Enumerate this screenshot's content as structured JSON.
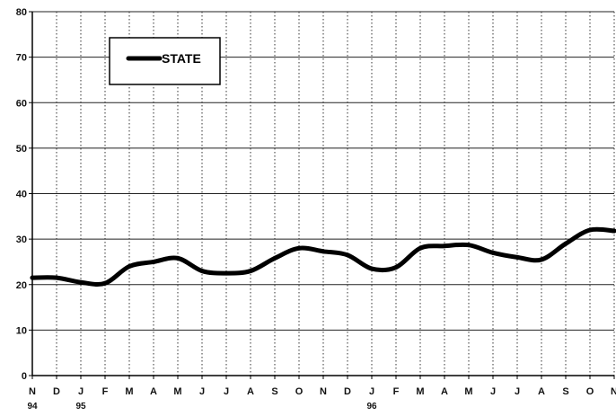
{
  "chart_data": {
    "type": "line",
    "title": "",
    "xlabel": "",
    "ylabel": "",
    "ylim": [
      0,
      80
    ],
    "yticks": [
      0,
      10,
      20,
      30,
      40,
      50,
      60,
      70,
      80
    ],
    "grid": "horizontal solid, vertical dotted",
    "legend": {
      "placement": "top-left",
      "entries": [
        "STATE"
      ]
    },
    "categories": [
      "N",
      "D",
      "J",
      "F",
      "M",
      "A",
      "M",
      "J",
      "J",
      "A",
      "S",
      "O",
      "N",
      "D",
      "J",
      "F",
      "M",
      "A",
      "M",
      "J",
      "J",
      "A",
      "S",
      "O",
      "N"
    ],
    "year_labels": [
      {
        "index": 0,
        "text": "94"
      },
      {
        "index": 2,
        "text": "95"
      },
      {
        "index": 14,
        "text": "96"
      }
    ],
    "series": [
      {
        "name": "STATE",
        "color": "#000000",
        "values": [
          21.5,
          21.5,
          20.5,
          20.3,
          24,
          25,
          25.8,
          23,
          22.5,
          23,
          25.8,
          28,
          27.3,
          26.5,
          23.5,
          23.8,
          28,
          28.5,
          28.7,
          27,
          26,
          25.5,
          29,
          32,
          31.8
        ]
      }
    ]
  }
}
